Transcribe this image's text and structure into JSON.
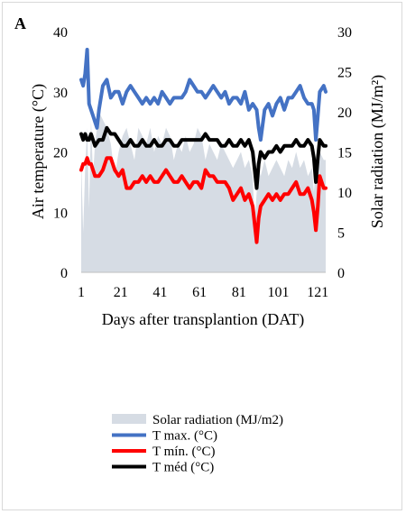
{
  "panel_label": "A",
  "chart_data": {
    "type": "line",
    "xlabel": "Days after transplantion  (DAT)",
    "ylabel_left": "Air temperature (°C)",
    "ylabel_right": "Solar radiation  (MJ/m²)",
    "xlim": [
      1,
      125
    ],
    "ylim_left": [
      0,
      40
    ],
    "ylim_right": [
      0,
      30
    ],
    "xticks": [
      1,
      21,
      41,
      61,
      81,
      101,
      121
    ],
    "yticks_left": [
      0,
      10,
      20,
      30,
      40
    ],
    "yticks_right": [
      0,
      5,
      10,
      15,
      20,
      25,
      30
    ],
    "grid": false,
    "legend_position": "bottom",
    "series": [
      {
        "name": "Solar radiation (MJ/m2)",
        "kind": "area",
        "axis": "right",
        "color": "#d6dce4",
        "x": [
          1,
          2,
          3,
          4,
          5,
          6,
          7,
          8,
          10,
          12,
          14,
          16,
          18,
          20,
          22,
          24,
          26,
          28,
          30,
          32,
          34,
          36,
          38,
          40,
          42,
          44,
          46,
          48,
          50,
          52,
          54,
          56,
          58,
          60,
          62,
          64,
          66,
          68,
          70,
          72,
          74,
          76,
          78,
          80,
          82,
          84,
          86,
          88,
          89,
          90,
          91,
          92,
          94,
          96,
          98,
          100,
          102,
          104,
          106,
          108,
          110,
          112,
          114,
          116,
          118,
          119,
          120,
          121,
          122,
          124,
          125
        ],
        "values": [
          14,
          5,
          13,
          18,
          8,
          19,
          12,
          16,
          20,
          19,
          18,
          16,
          12,
          15,
          17,
          18,
          16,
          14,
          18,
          17,
          16,
          18,
          15,
          17,
          16,
          18,
          17,
          14,
          16,
          15,
          17,
          15,
          16,
          18,
          17,
          14,
          16,
          15,
          14,
          16,
          15,
          14,
          13,
          14,
          15,
          13,
          14,
          12,
          6,
          10,
          13,
          12,
          14,
          12,
          13,
          14,
          13,
          12,
          14,
          13,
          15,
          13,
          14,
          12,
          13,
          10,
          13,
          14,
          15,
          14,
          14
        ]
      },
      {
        "name": "T max. (°C)",
        "kind": "line",
        "axis": "left",
        "color": "#4472c4",
        "x": [
          1,
          2,
          3,
          4,
          5,
          6,
          7,
          8,
          9,
          10,
          12,
          14,
          16,
          18,
          20,
          22,
          24,
          26,
          28,
          30,
          32,
          34,
          36,
          38,
          40,
          42,
          44,
          46,
          48,
          50,
          52,
          54,
          56,
          58,
          60,
          62,
          64,
          66,
          68,
          70,
          72,
          74,
          76,
          78,
          80,
          82,
          84,
          86,
          88,
          90,
          91,
          92,
          94,
          96,
          98,
          100,
          102,
          104,
          106,
          108,
          110,
          112,
          114,
          116,
          118,
          119,
          120,
          121,
          122,
          124,
          125
        ],
        "values": [
          32,
          31,
          33,
          37,
          28,
          27,
          26,
          25,
          24,
          27,
          31,
          32,
          29,
          30,
          30,
          28,
          30,
          31,
          30,
          29,
          28,
          29,
          28,
          29,
          28,
          30,
          29,
          28,
          29,
          29,
          29,
          30,
          32,
          31,
          30,
          30,
          29,
          30,
          31,
          30,
          29,
          30,
          28,
          29,
          29,
          28,
          30,
          27,
          28,
          27,
          24,
          22,
          27,
          28,
          26,
          28,
          29,
          27,
          29,
          29,
          30,
          31,
          29,
          28,
          28,
          27,
          22,
          26,
          30,
          31,
          30
        ]
      },
      {
        "name": "T mín. (°C)",
        "kind": "line",
        "axis": "left",
        "color": "#ff0000",
        "x": [
          1,
          2,
          3,
          4,
          5,
          6,
          7,
          8,
          10,
          12,
          14,
          16,
          18,
          20,
          22,
          24,
          26,
          28,
          30,
          32,
          34,
          36,
          38,
          40,
          42,
          44,
          46,
          48,
          50,
          52,
          54,
          56,
          58,
          60,
          62,
          64,
          66,
          68,
          70,
          72,
          74,
          76,
          78,
          80,
          82,
          84,
          86,
          88,
          89,
          90,
          91,
          92,
          94,
          96,
          98,
          100,
          102,
          104,
          106,
          108,
          110,
          112,
          114,
          116,
          118,
          119,
          120,
          121,
          122,
          124,
          125
        ],
        "values": [
          17,
          18,
          18,
          19,
          18,
          18,
          17,
          16,
          16,
          17,
          19,
          19,
          17,
          16,
          17,
          14,
          14,
          15,
          15,
          16,
          15,
          16,
          15,
          15,
          16,
          17,
          16,
          15,
          15,
          16,
          15,
          14,
          15,
          15,
          14,
          17,
          16,
          16,
          15,
          15,
          15,
          14,
          12,
          13,
          14,
          12,
          13,
          11,
          8,
          5,
          9,
          11,
          12,
          13,
          12,
          13,
          12,
          13,
          13,
          14,
          15,
          13,
          13,
          14,
          12,
          10,
          7,
          11,
          16,
          14,
          14
        ]
      },
      {
        "name": "T méd (°C)",
        "kind": "line",
        "axis": "left",
        "color": "#000000",
        "x": [
          1,
          2,
          3,
          4,
          5,
          6,
          7,
          8,
          10,
          12,
          14,
          16,
          18,
          20,
          22,
          24,
          26,
          28,
          30,
          32,
          34,
          36,
          38,
          40,
          42,
          44,
          46,
          48,
          50,
          52,
          54,
          56,
          58,
          60,
          62,
          64,
          66,
          68,
          70,
          72,
          74,
          76,
          78,
          80,
          82,
          84,
          86,
          88,
          89,
          90,
          91,
          92,
          94,
          96,
          98,
          100,
          102,
          104,
          106,
          108,
          110,
          112,
          114,
          116,
          118,
          119,
          120,
          121,
          122,
          124,
          125
        ],
        "values": [
          23,
          22,
          23,
          22,
          22,
          23,
          22,
          21,
          22,
          22,
          24,
          23,
          23,
          22,
          21,
          21,
          22,
          21,
          21,
          22,
          21,
          21,
          22,
          21,
          21,
          22,
          22,
          21,
          21,
          22,
          22,
          22,
          22,
          22,
          22,
          23,
          22,
          22,
          22,
          21,
          21,
          22,
          21,
          21,
          22,
          21,
          22,
          20,
          17,
          14,
          18,
          20,
          19,
          20,
          20,
          21,
          20,
          21,
          21,
          21,
          22,
          21,
          21,
          22,
          21,
          19,
          15,
          19,
          22,
          21,
          21
        ]
      }
    ]
  }
}
